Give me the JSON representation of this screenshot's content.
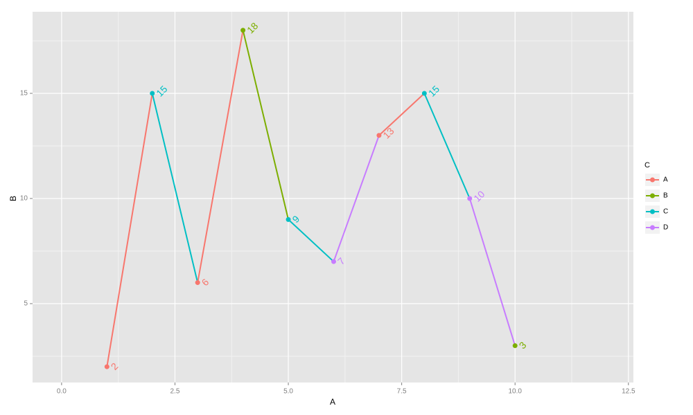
{
  "chart_data": {
    "type": "line",
    "x_label": "A",
    "y_label": "B",
    "x": [
      1,
      2,
      3,
      4,
      5,
      6,
      7,
      8,
      9,
      10
    ],
    "values": [
      2,
      15,
      6,
      18,
      9,
      7,
      13,
      15,
      10,
      3
    ],
    "groups": [
      "A",
      "C",
      "A",
      "B",
      "C",
      "D",
      "A",
      "C",
      "D",
      "B"
    ],
    "legend": {
      "title": "C",
      "entries": [
        {
          "name": "A",
          "color": "#F8766D"
        },
        {
          "name": "B",
          "color": "#7CAE00"
        },
        {
          "name": "C",
          "color": "#00BFC4"
        },
        {
          "name": "D",
          "color": "#C77CFF"
        }
      ]
    },
    "xlim": [
      -0.64,
      12.61
    ],
    "ylim": [
      1.25,
      18.88
    ],
    "xticks": [
      {
        "value": 0,
        "label": "0.0"
      },
      {
        "value": 2.5,
        "label": "2.5"
      },
      {
        "value": 5,
        "label": "5.0"
      },
      {
        "value": 7.5,
        "label": "7.5"
      },
      {
        "value": 10,
        "label": "10.0"
      },
      {
        "value": 12.5,
        "label": "12.5"
      }
    ],
    "yticks": [
      5,
      10,
      15
    ],
    "grid": true
  }
}
